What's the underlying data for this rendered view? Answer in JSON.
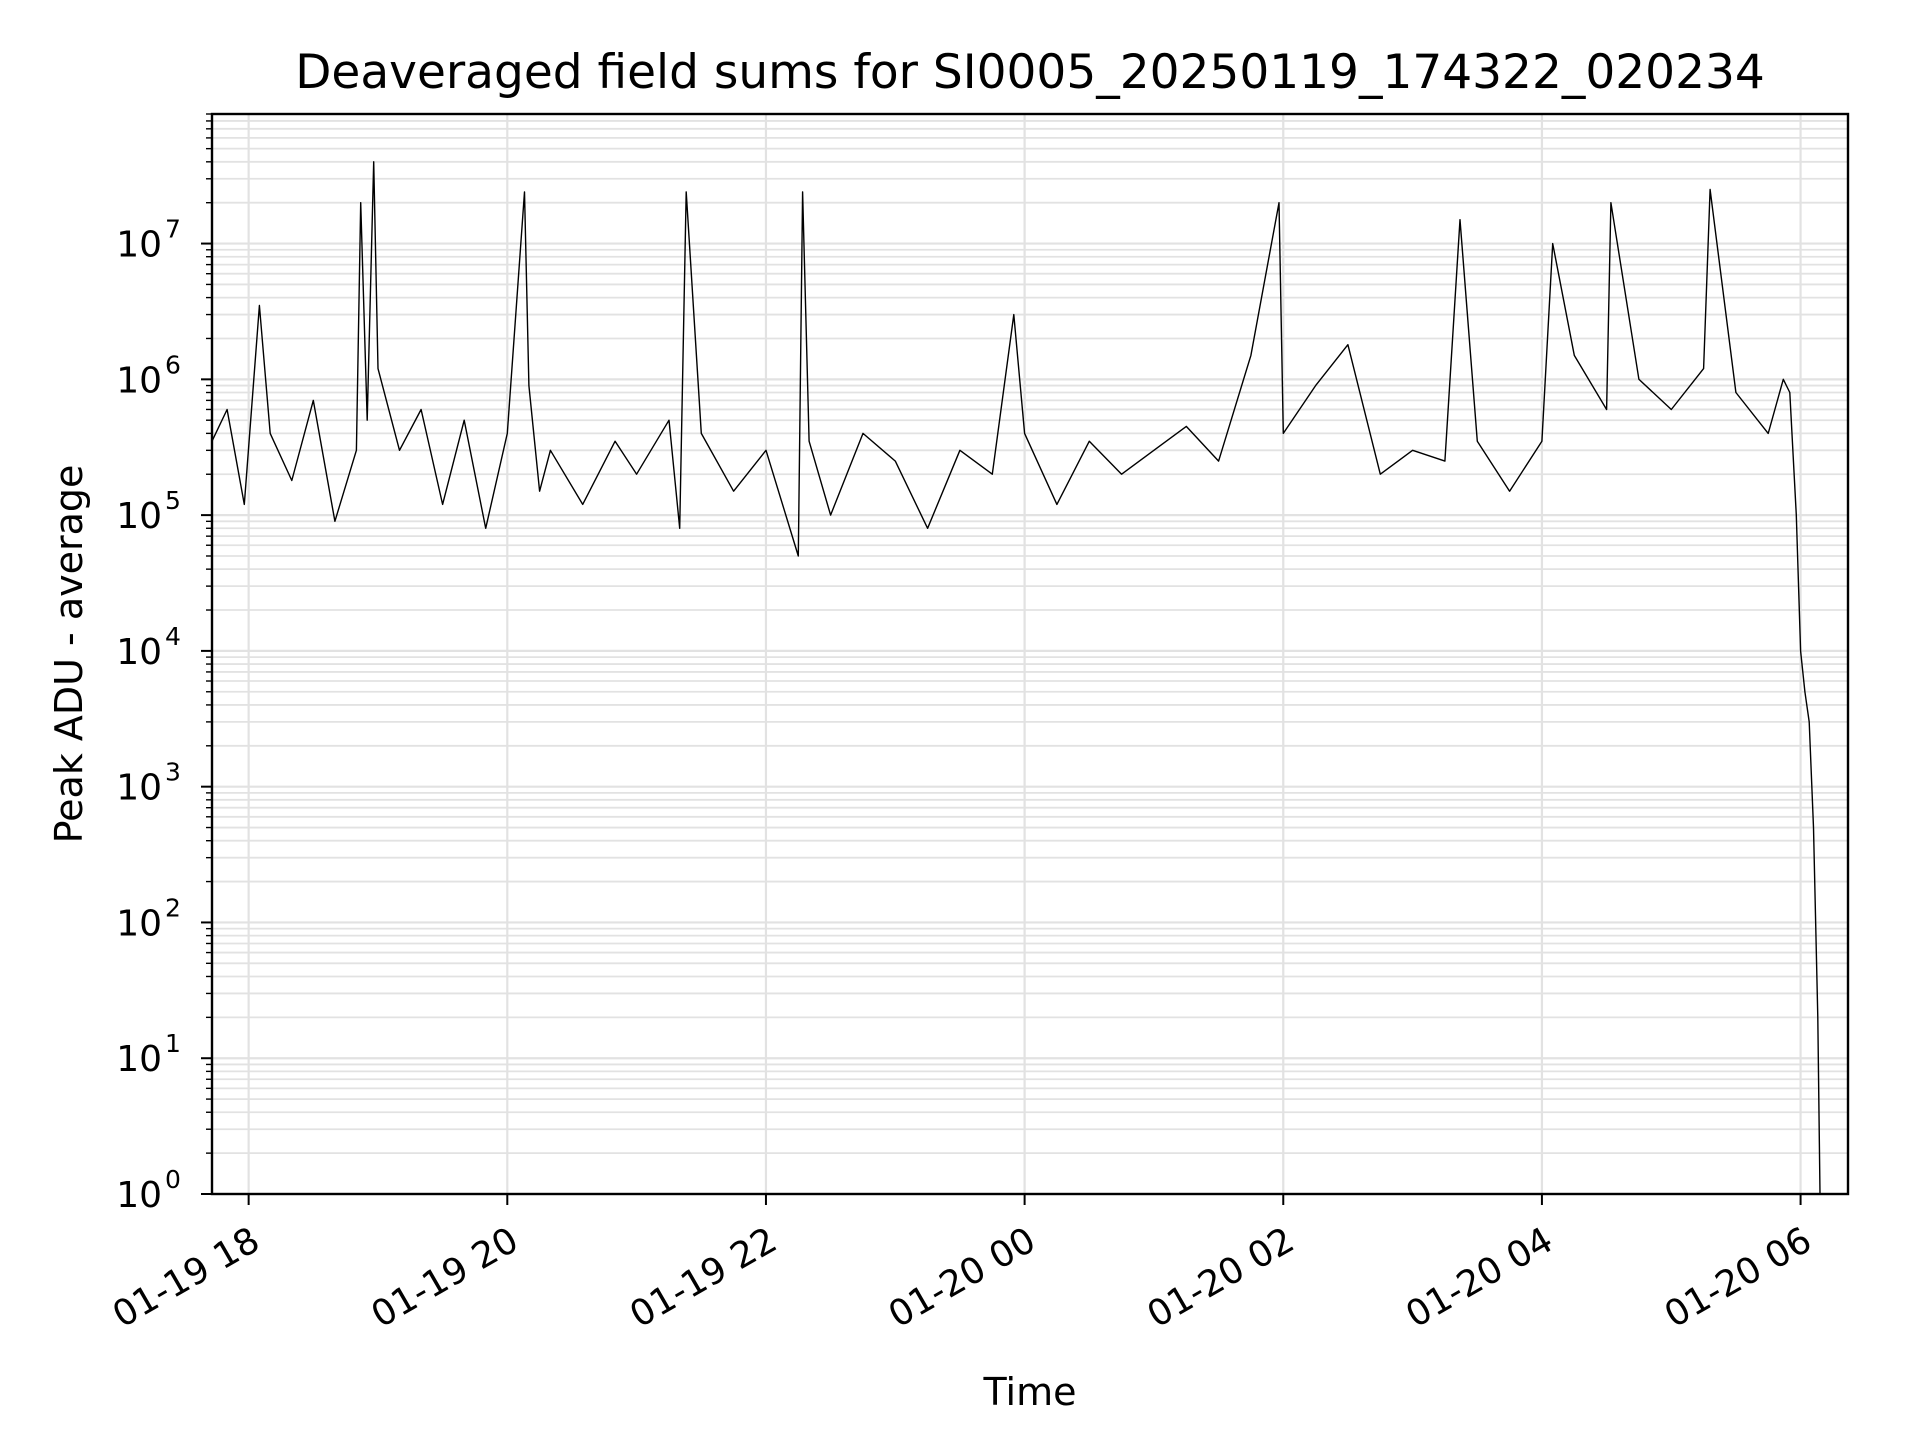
{
  "chart_data": {
    "type": "line",
    "title": "Deaveraged field sums for SI0005_20250119_174322_020234",
    "xlabel": "Time",
    "ylabel": "Peak ADU - average",
    "yscale": "log",
    "ylim": [
      1,
      90000000
    ],
    "xlim": [
      "2025-01-19 17:43",
      "2025-01-20 06:22"
    ],
    "grid": true,
    "legend": "none",
    "line_color": "#000000",
    "x_ticks": [
      {
        "value": "2025-01-19 18:00",
        "label": "01-19 18"
      },
      {
        "value": "2025-01-19 20:00",
        "label": "01-19 20"
      },
      {
        "value": "2025-01-19 22:00",
        "label": "01-19 22"
      },
      {
        "value": "2025-01-20 00:00",
        "label": "01-20 00"
      },
      {
        "value": "2025-01-20 02:00",
        "label": "01-20 02"
      },
      {
        "value": "2025-01-20 04:00",
        "label": "01-20 04"
      },
      {
        "value": "2025-01-20 06:00",
        "label": "01-20 06"
      }
    ],
    "y_ticks": [
      {
        "value": 1,
        "base": "10",
        "exp": "0"
      },
      {
        "value": 10,
        "base": "10",
        "exp": "1"
      },
      {
        "value": 100,
        "base": "10",
        "exp": "2"
      },
      {
        "value": 1000,
        "base": "10",
        "exp": "3"
      },
      {
        "value": 10000,
        "base": "10",
        "exp": "4"
      },
      {
        "value": 100000,
        "base": "10",
        "exp": "5"
      },
      {
        "value": 1000000,
        "base": "10",
        "exp": "6"
      },
      {
        "value": 10000000,
        "base": "10",
        "exp": "7"
      }
    ],
    "series": [
      {
        "x": [
          "2025-01-19 17:43",
          "2025-01-19 17:50",
          "2025-01-19 17:58",
          "2025-01-19 18:05",
          "2025-01-19 18:10",
          "2025-01-19 18:20",
          "2025-01-19 18:30",
          "2025-01-19 18:40",
          "2025-01-19 18:50",
          "2025-01-19 18:52",
          "2025-01-19 18:55",
          "2025-01-19 18:58",
          "2025-01-19 19:00",
          "2025-01-19 19:10",
          "2025-01-19 19:20",
          "2025-01-19 19:30",
          "2025-01-19 19:40",
          "2025-01-19 19:50",
          "2025-01-19 20:00",
          "2025-01-19 20:08",
          "2025-01-19 20:10",
          "2025-01-19 20:15",
          "2025-01-19 20:20",
          "2025-01-19 20:35",
          "2025-01-19 20:50",
          "2025-01-19 21:00",
          "2025-01-19 21:15",
          "2025-01-19 21:20",
          "2025-01-19 21:23",
          "2025-01-19 21:30",
          "2025-01-19 21:45",
          "2025-01-19 22:00",
          "2025-01-19 22:15",
          "2025-01-19 22:17",
          "2025-01-19 22:20",
          "2025-01-19 22:30",
          "2025-01-19 22:45",
          "2025-01-19 23:00",
          "2025-01-19 23:15",
          "2025-01-19 23:30",
          "2025-01-19 23:45",
          "2025-01-19 23:55",
          "2025-01-20 00:00",
          "2025-01-20 00:15",
          "2025-01-20 00:30",
          "2025-01-20 00:45",
          "2025-01-20 01:00",
          "2025-01-20 01:15",
          "2025-01-20 01:30",
          "2025-01-20 01:45",
          "2025-01-20 01:58",
          "2025-01-20 02:00",
          "2025-01-20 02:15",
          "2025-01-20 02:30",
          "2025-01-20 02:45",
          "2025-01-20 03:00",
          "2025-01-20 03:15",
          "2025-01-20 03:22",
          "2025-01-20 03:30",
          "2025-01-20 03:45",
          "2025-01-20 04:00",
          "2025-01-20 04:05",
          "2025-01-20 04:15",
          "2025-01-20 04:30",
          "2025-01-20 04:32",
          "2025-01-20 04:45",
          "2025-01-20 05:00",
          "2025-01-20 05:15",
          "2025-01-20 05:18",
          "2025-01-20 05:30",
          "2025-01-20 05:45",
          "2025-01-20 05:52",
          "2025-01-20 05:55",
          "2025-01-20 05:58",
          "2025-01-20 06:00",
          "2025-01-20 06:02",
          "2025-01-20 06:04",
          "2025-01-20 06:06",
          "2025-01-20 06:08",
          "2025-01-20 06:09"
        ],
        "y": [
          350000,
          600000,
          120000,
          3500000,
          400000,
          180000,
          700000,
          90000,
          300000,
          20000000,
          500000,
          40000000,
          1200000,
          300000,
          600000,
          120000,
          500000,
          80000,
          400000,
          24000000,
          900000,
          150000,
          300000,
          120000,
          350000,
          200000,
          500000,
          80000,
          24000000,
          400000,
          150000,
          300000,
          50000,
          24000000,
          350000,
          100000,
          400000,
          250000,
          80000,
          300000,
          200000,
          3000000,
          400000,
          120000,
          350000,
          200000,
          300000,
          450000,
          250000,
          1500000,
          20000000,
          400000,
          900000,
          1800000,
          200000,
          300000,
          250000,
          15000000,
          350000,
          150000,
          350000,
          10000000,
          1500000,
          600000,
          20000000,
          1000000,
          600000,
          1200000,
          25000000,
          800000,
          400000,
          1000000,
          800000,
          100000,
          10000,
          5000,
          3000,
          500,
          20,
          1
        ]
      }
    ]
  }
}
